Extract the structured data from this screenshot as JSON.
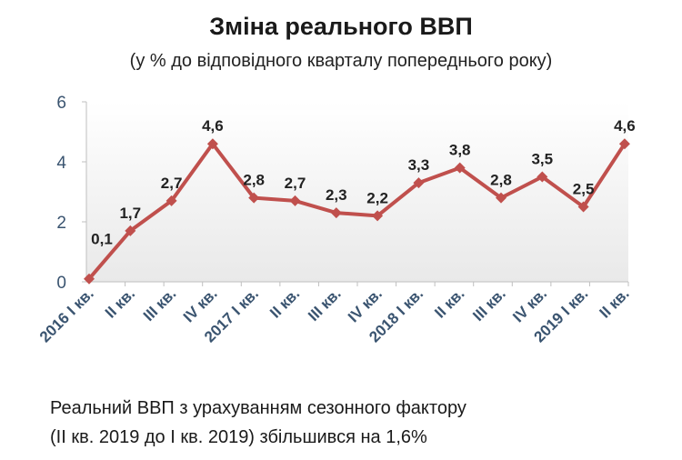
{
  "chart_data": {
    "type": "line",
    "title": "Зміна реального ВВП",
    "subtitle": "(у % до відповідного кварталу попереднього року)",
    "xlabel": "",
    "ylabel": "",
    "ylim": [
      0,
      6
    ],
    "yticks": [
      "0",
      "2",
      "4",
      "6"
    ],
    "grid": false,
    "legend": "none",
    "categories": [
      "2016 I кв.",
      "II кв.",
      "III кв.",
      "IV кв.",
      "2017 I кв.",
      "II кв.",
      "III кв.",
      "IV кв.",
      "2018 I кв.",
      "II кв.",
      "III кв.",
      "IV кв.",
      "2019 I кв.",
      "II кв."
    ],
    "series": [
      {
        "values": [
          0.1,
          1.7,
          2.7,
          4.6,
          2.8,
          2.7,
          2.3,
          2.2,
          3.3,
          3.8,
          2.8,
          3.5,
          2.5,
          4.6
        ],
        "labels": [
          "0,1",
          "1,7",
          "2,7",
          "4,6",
          "2,8",
          "2,7",
          "2,3",
          "2,2",
          "3,3",
          "3,8",
          "2,8",
          "3,5",
          "2,5",
          "4,6"
        ],
        "color": "#c0504d"
      }
    ]
  },
  "footnote": {
    "line1": "Реальний ВВП з урахуванням сезонного фактору",
    "line2": "(ІІ кв. 2019 до І кв. 2019) збільшився на 1,6%"
  },
  "colors": {
    "line": "#c0504d",
    "tick_label": "#3a5470",
    "data_label": "#222222"
  }
}
